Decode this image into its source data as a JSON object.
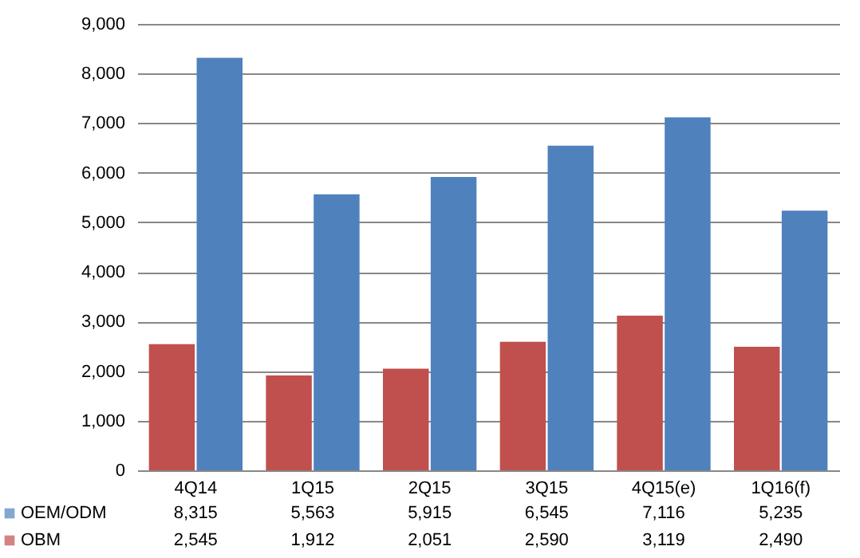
{
  "chart_data": {
    "type": "bar",
    "categories": [
      "4Q14",
      "1Q15",
      "2Q15",
      "3Q15",
      "4Q15(e)",
      "1Q16(f)"
    ],
    "series": [
      {
        "name": "OEM/ODM",
        "color": "#4f81bd",
        "values": [
          8315,
          5563,
          5915,
          6545,
          7116,
          5235
        ],
        "value_labels": [
          "8,315",
          "5,563",
          "5,915",
          "6,545",
          "7,116",
          "5,235"
        ]
      },
      {
        "name": "OBM",
        "color": "#c0504d",
        "values": [
          2545,
          1912,
          2051,
          2590,
          3119,
          2490
        ],
        "value_labels": [
          "2,545",
          "1,912",
          "2,051",
          "2,590",
          "3,119",
          "2,490"
        ]
      }
    ],
    "ylim": [
      0,
      9000
    ],
    "yticks": [
      {
        "value": 0,
        "label": "0"
      },
      {
        "value": 1000,
        "label": "1,000"
      },
      {
        "value": 2000,
        "label": "2,000"
      },
      {
        "value": 3000,
        "label": "3,000"
      },
      {
        "value": 4000,
        "label": "4,000"
      },
      {
        "value": 5000,
        "label": "5,000"
      },
      {
        "value": 6000,
        "label": "6,000"
      },
      {
        "value": 7000,
        "label": "7,000"
      },
      {
        "value": 8000,
        "label": "8,000"
      },
      {
        "value": 9000,
        "label": "9,000"
      }
    ],
    "grid": "y",
    "legend": "bottom"
  }
}
